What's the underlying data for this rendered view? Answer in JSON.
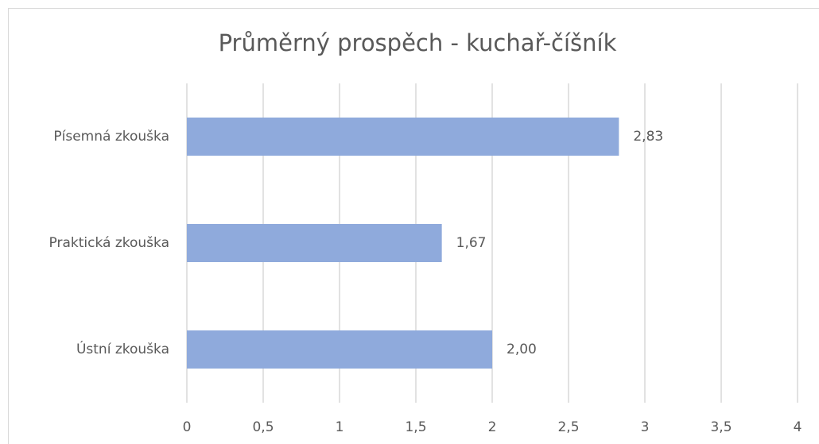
{
  "chart_data": {
    "type": "bar",
    "orientation": "horizontal",
    "title": "Průměrný prospěch - kuchař-číšník",
    "categories": [
      "Písemná zkouška",
      "Praktická zkouška",
      "Ústní zkouška"
    ],
    "values": [
      2.83,
      1.67,
      2.0
    ],
    "value_labels": [
      "2,83",
      "1,67",
      "2,00"
    ],
    "color": "#8faadc",
    "xlim": [
      0,
      4
    ],
    "xticks": [
      0,
      {
        "value": 0.5,
        "label": "0,5"
      },
      1,
      {
        "value": 1.5,
        "label": "1,5"
      },
      2,
      {
        "value": 2.5,
        "label": "2,5"
      },
      3,
      {
        "value": 3.5,
        "label": "3,5"
      },
      4
    ],
    "grid": true
  }
}
